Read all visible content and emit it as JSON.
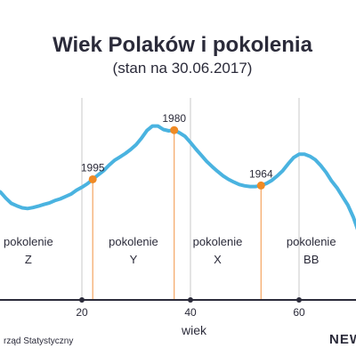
{
  "chart_data": {
    "type": "line",
    "title": "Wiek Polaków i pokolenia",
    "subtitle": "(stan na 30.06.2017)",
    "xlabel": "wiek",
    "ylabel": "",
    "xlim": [
      0,
      75
    ],
    "grid": false,
    "x_ticks": [
      20,
      40,
      60
    ],
    "series": [
      {
        "values_x": [
          0,
          1,
          2,
          3,
          4,
          5,
          6,
          7,
          8,
          9,
          10,
          11,
          12,
          13,
          14,
          15,
          16,
          17,
          18,
          19,
          20,
          21,
          22,
          23,
          24,
          25,
          26,
          27,
          28,
          29,
          30,
          31,
          32,
          33,
          34,
          35,
          36,
          37,
          38,
          39,
          40,
          41,
          42,
          43,
          44,
          45,
          46,
          47,
          48,
          49,
          50,
          51,
          52,
          53,
          54,
          55,
          56,
          57,
          58,
          59,
          60,
          61,
          62,
          63,
          64,
          65,
          66,
          67,
          68,
          69,
          70,
          71,
          72,
          73,
          74,
          75
        ],
        "values_y": [
          380,
          390,
          405,
          420,
          425,
          418,
          400,
          385,
          378,
          372,
          370,
          373,
          377,
          382,
          386,
          393,
          398,
          405,
          412,
          423,
          432,
          442,
          455,
          468,
          480,
          496,
          510,
          520,
          530,
          542,
          556,
          575,
          597,
          610,
          610,
          600,
          596,
          598,
          590,
          580,
          562,
          543,
          525,
          507,
          492,
          478,
          465,
          455,
          447,
          440,
          436,
          434,
          434,
          437,
          443,
          452,
          465,
          480,
          500,
          518,
          528,
          528,
          522,
          512,
          495,
          475,
          450,
          430,
          405,
          380,
          345,
          300,
          270,
          255,
          250,
          250
        ]
      }
    ],
    "generations": [
      {
        "name": "pokolenie",
        "letter": "Z"
      },
      {
        "name": "pokolenie",
        "letter": "Y"
      },
      {
        "name": "pokolenie",
        "letter": "X"
      },
      {
        "name": "pokolenie",
        "letter": "BB"
      }
    ],
    "markers": [
      {
        "label": "1995",
        "age": 22
      },
      {
        "label": "1980",
        "age": 37
      },
      {
        "label": "1964",
        "age": 53
      },
      {
        "label": "",
        "age": 71.5
      }
    ],
    "colors": {
      "line": "#4ab3e0",
      "marker": "#f08a24",
      "divider": "#f4a460",
      "grid": "#c8c8c8",
      "axis": "#2b2b3a"
    }
  },
  "footer": {
    "source": "rząd Statystyczny",
    "brand": "NEW"
  }
}
